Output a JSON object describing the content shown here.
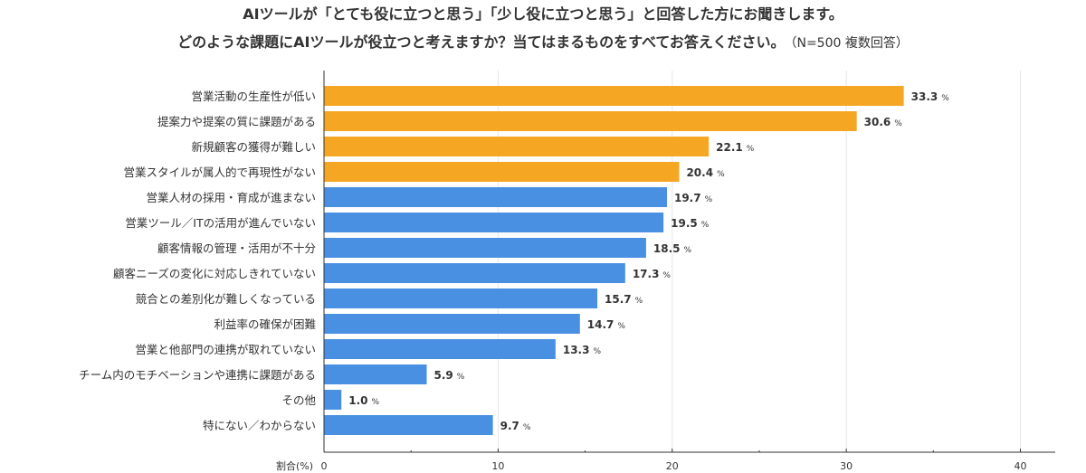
{
  "header": {
    "title_line1": "AIツールが「とても役に立つと思う」「少し役に立つと思う」と回答した方にお聞きします。",
    "title_line2": "どのような課題にAIツールが役立つと考えますか？当てはまるものをすべてお答えください。",
    "note": "（N=500 複数回答）"
  },
  "colors": {
    "highlight": "#F5A623",
    "normal": "#4A90E2",
    "grid": "#E5E5E5",
    "axis": "#333333",
    "text": "#333333"
  },
  "chart_data": {
    "type": "bar",
    "orientation": "horizontal",
    "categories": [
      "営業活動の生産性が低い",
      "提案力や提案の質に課題がある",
      "新規顧客の獲得が難しい",
      "営業スタイルが属人的で再現性がない",
      "営業人材の採用・育成が進まない",
      "営業ツール／ITの活用が進んでいない",
      "顧客情報の管理・活用が不十分",
      "顧客ニーズの変化に対応しきれていない",
      "競合との差別化が難しくなっている",
      "利益率の確保が困難",
      "営業と他部門の連携が取れていない",
      "チーム内のモチベーションや連携に課題がある",
      "その他",
      "特にない／わからない"
    ],
    "values": [
      33.3,
      30.6,
      22.1,
      20.4,
      19.7,
      19.5,
      18.5,
      17.3,
      15.7,
      14.7,
      13.3,
      5.9,
      1.0,
      9.7
    ],
    "value_labels": [
      "33.3",
      "30.6",
      "22.1",
      "20.4",
      "19.7",
      "19.5",
      "18.5",
      "17.3",
      "15.7",
      "14.7",
      "13.3",
      "5.9",
      "1.0",
      "9.7"
    ],
    "value_suffix": "%",
    "highlight_count": 4,
    "xlabel": "割合(%)",
    "xlim": [
      0,
      42
    ],
    "xticks": [
      0,
      10,
      20,
      30,
      40
    ],
    "xtick_labels": [
      "0",
      "10",
      "20",
      "30",
      "40"
    ]
  }
}
